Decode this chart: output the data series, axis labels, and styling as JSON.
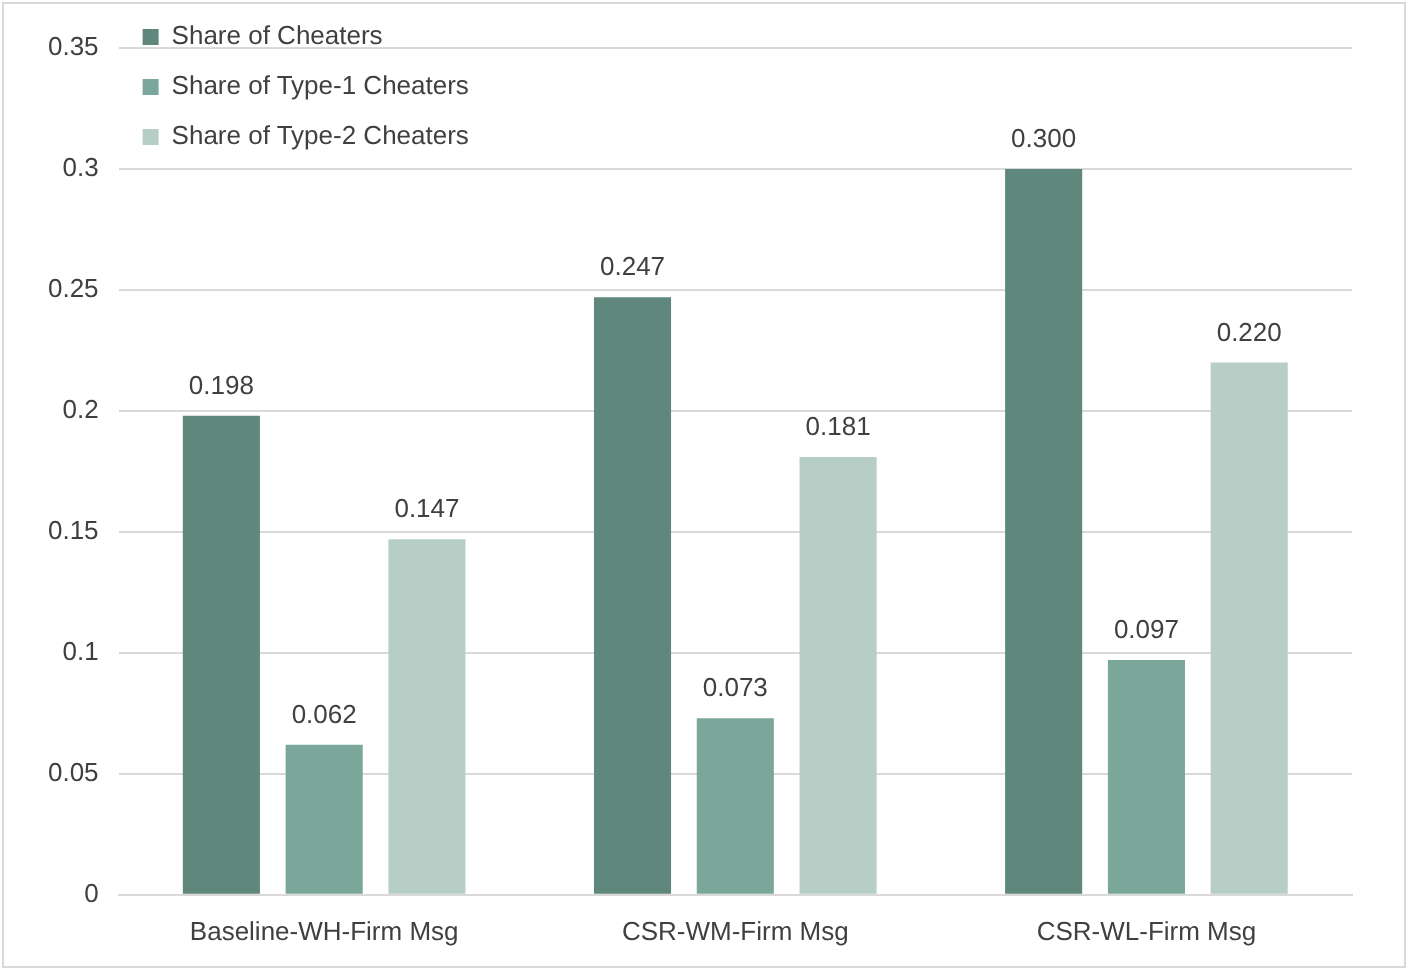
{
  "chart_data": {
    "type": "bar",
    "categories": [
      "Baseline-WH-Firm Msg",
      "CSR-WM-Firm Msg",
      "CSR-WL-Firm Msg"
    ],
    "series": [
      {
        "name": "Share of Cheaters",
        "color": "#5f877b",
        "values": [
          0.198,
          0.247,
          0.3
        ],
        "value_labels": [
          "0.198",
          "0.247",
          "0.300"
        ]
      },
      {
        "name": "Share of Type-1 Cheaters",
        "color": "#7aa79a",
        "values": [
          0.062,
          0.073,
          0.097
        ],
        "value_labels": [
          "0.062",
          "0.073",
          "0.097"
        ]
      },
      {
        "name": "Share of Type-2 Cheaters",
        "color": "#b7cec7",
        "values": [
          0.147,
          0.181,
          0.22
        ],
        "value_labels": [
          "0.147",
          "0.181",
          "0.220"
        ]
      }
    ],
    "ylim": [
      0,
      0.35
    ],
    "yticks": [
      0,
      0.05,
      0.1,
      0.15,
      0.2,
      0.25,
      0.3,
      0.35
    ],
    "grid": "y",
    "legend": "top left"
  }
}
